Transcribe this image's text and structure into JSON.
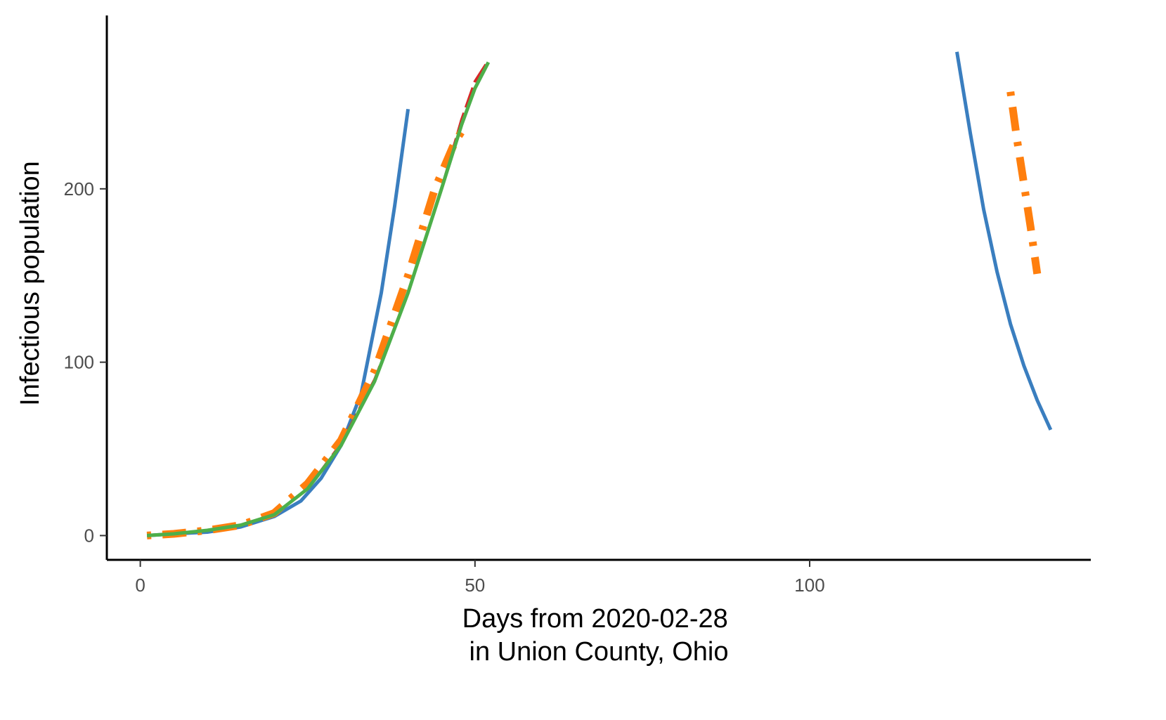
{
  "chart_data": {
    "type": "line",
    "xlabel_lines": [
      "Days from 2020-02-28",
      " in Union County, Ohio"
    ],
    "ylabel": "Infectious population",
    "xlim": [
      -5,
      142
    ],
    "ylim": [
      -14,
      300
    ],
    "xticks": [
      0,
      50,
      100
    ],
    "yticks": [
      0,
      100,
      200
    ],
    "grid": false,
    "legend": "none",
    "series": [
      {
        "color": "#3a7ebf",
        "dash": "solid",
        "x": [
          1,
          5,
          10,
          15,
          20,
          24,
          27,
          30,
          33,
          36,
          38,
          40
        ],
        "y": [
          0,
          1,
          2,
          5,
          11,
          20,
          33,
          52,
          82,
          140,
          190,
          246
        ]
      },
      {
        "color": "#3a7ebf",
        "dash": "solid",
        "x": [
          122,
          124,
          126,
          128,
          130,
          132,
          134,
          136
        ],
        "y": [
          279,
          232,
          188,
          152,
          122,
          98,
          78,
          61
        ]
      },
      {
        "color": "#d62728",
        "dash": "longdash",
        "x": [
          1,
          5,
          10,
          15,
          20,
          25,
          30,
          35,
          40,
          45,
          48,
          50,
          52
        ],
        "y": [
          0,
          1,
          3,
          6,
          12,
          27,
          53,
          90,
          140,
          200,
          240,
          262,
          274
        ]
      },
      {
        "color": "#ff7f0e",
        "dash": "dotdash",
        "x": [
          1,
          5,
          10,
          15,
          20,
          25,
          30,
          35,
          40,
          44,
          47,
          48
        ],
        "y": [
          0,
          1,
          3,
          6,
          13,
          30,
          55,
          95,
          150,
          200,
          227,
          233
        ]
      },
      {
        "color": "#ff7f0e",
        "dash": "dotdash",
        "x": [
          130,
          131,
          132,
          133,
          134
        ],
        "y": [
          256,
          228,
          203,
          178,
          151
        ]
      },
      {
        "color": "#4daf4a",
        "dash": "solid",
        "x": [
          1,
          5,
          10,
          15,
          20,
          25,
          30,
          35,
          40,
          45,
          48,
          50,
          52
        ],
        "y": [
          0,
          1,
          3,
          6,
          12,
          27,
          52,
          89,
          140,
          200,
          237,
          258,
          273
        ]
      }
    ]
  }
}
